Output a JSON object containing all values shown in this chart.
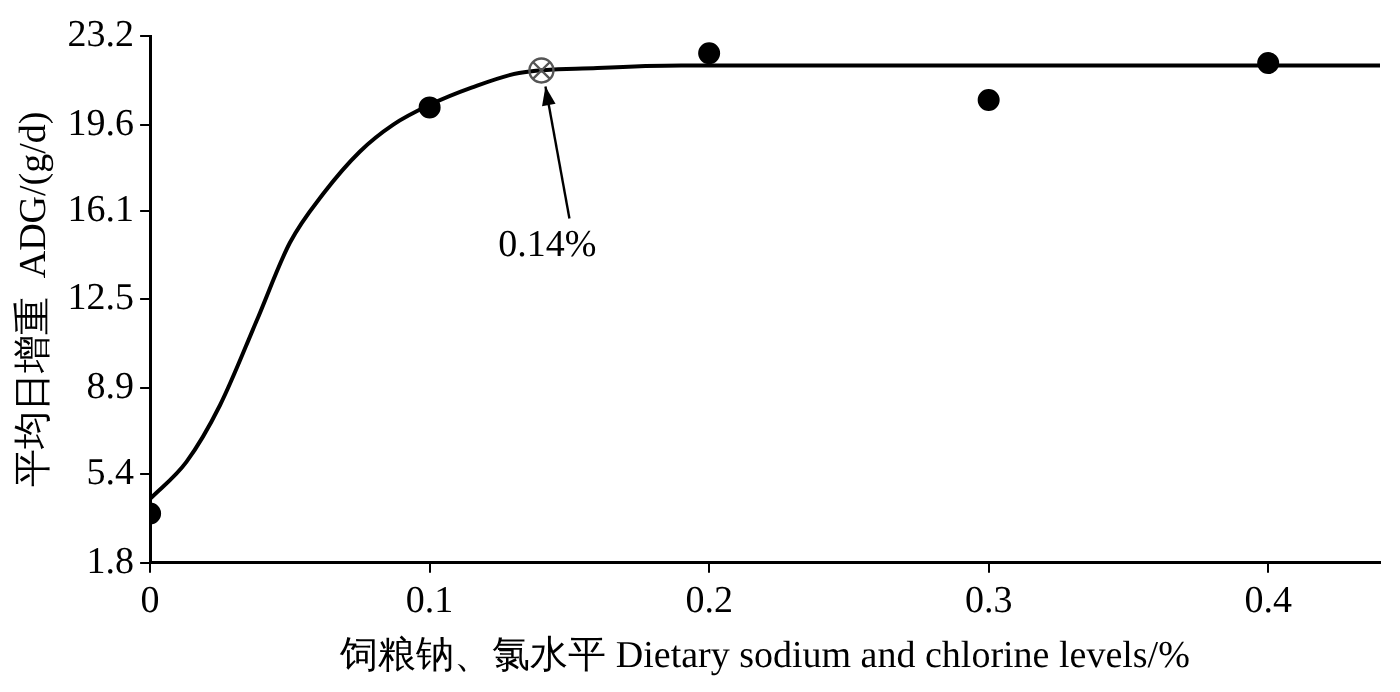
{
  "chart_data": {
    "type": "scatter",
    "xlabel": "饲粮钠、氯水平 Dietary sodium and chlorine levels/%",
    "ylabel": "平均日增重  ADG/(g/d)",
    "xlim": [
      0,
      0.44
    ],
    "xticks": [
      0,
      0.1,
      0.2,
      0.3,
      0.4
    ],
    "ylim": [
      1.8,
      23.2
    ],
    "yticks": [
      1.8,
      5.4,
      8.9,
      12.5,
      16.1,
      19.6,
      23.2
    ],
    "grid": false,
    "legend": false,
    "series": [
      {
        "type": "line",
        "color": "#000000",
        "marker": "none",
        "line_style": "solid",
        "x": [
          0,
          0.013,
          0.025,
          0.038,
          0.05,
          0.062,
          0.075,
          0.087,
          0.1,
          0.115,
          0.132,
          0.16,
          0.19,
          0.3,
          0.44
        ],
        "values": [
          4.4,
          5.9,
          8.2,
          11.6,
          14.8,
          16.8,
          18.5,
          19.6,
          20.4,
          21.1,
          21.7,
          21.9,
          22.0,
          22.0,
          22.0
        ]
      },
      {
        "color": "#000000",
        "marker": "circle",
        "x": [
          0,
          0.1,
          0.2,
          0.3,
          0.4
        ],
        "values": [
          3.8,
          20.3,
          22.5,
          20.6,
          22.1
        ]
      },
      {
        "color": "#555555",
        "marker": "cross",
        "x": [
          0.14
        ],
        "values": [
          21.8
        ]
      }
    ],
    "annotations": [
      {
        "text": "0.14%",
        "x": 0.14,
        "y": 21.8
      }
    ]
  }
}
